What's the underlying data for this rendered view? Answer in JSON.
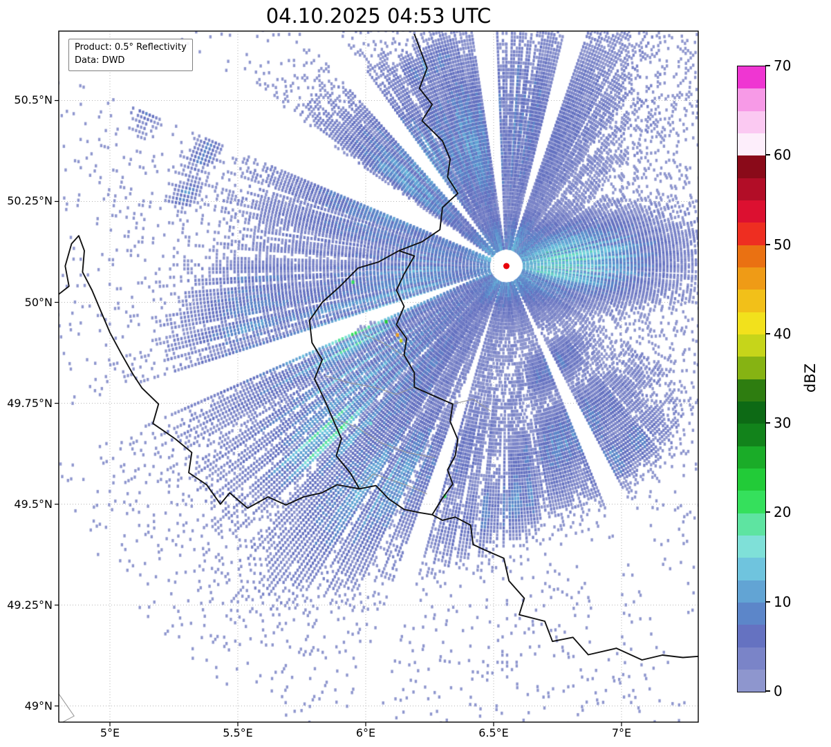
{
  "info_box": {
    "line1": "Product: 0.5° Reflectivity",
    "line2": "Data: DWD"
  },
  "chart_data": {
    "type": "heatmap",
    "title": "04.10.2025 04:53 UTC",
    "xlabel": "",
    "ylabel": "",
    "x_ticks": [
      {
        "value": 5.0,
        "label": "5°E"
      },
      {
        "value": 5.5,
        "label": "5.5°E"
      },
      {
        "value": 6.0,
        "label": "6°E"
      },
      {
        "value": 6.5,
        "label": "6.5°E"
      },
      {
        "value": 7.0,
        "label": "7°E"
      }
    ],
    "y_ticks": [
      {
        "value": 49.0,
        "label": "49°N"
      },
      {
        "value": 49.25,
        "label": "49.25°N"
      },
      {
        "value": 49.5,
        "label": "49.5°N"
      },
      {
        "value": 49.75,
        "label": "49.75°N"
      },
      {
        "value": 50.0,
        "label": "50°N"
      },
      {
        "value": 50.25,
        "label": "50.25°N"
      },
      {
        "value": 50.5,
        "label": "50.5°N"
      }
    ],
    "extent": {
      "lon_min": 4.8,
      "lon_max": 7.3,
      "lat_min": 48.96,
      "lat_max": 50.672
    },
    "grid": {
      "visible": true,
      "style": "dotted",
      "color": "#b3b3b3"
    },
    "colorbar": {
      "label": "dBZ",
      "min": 0,
      "max": 70,
      "step": 2.5,
      "tick_values": [
        0,
        10,
        20,
        30,
        40,
        50,
        60,
        70
      ],
      "colors_bottom_to_top": [
        "#8e96ce",
        "#7a84c8",
        "#6572c1",
        "#5c86c9",
        "#62a4d4",
        "#6fc4de",
        "#7fe0d8",
        "#5ee4a1",
        "#35e05c",
        "#22cb38",
        "#1aac28",
        "#12831b",
        "#0d6a15",
        "#2e7d10",
        "#86b313",
        "#c6d51a",
        "#f2e11c",
        "#f2c019",
        "#ef9b16",
        "#ea7112",
        "#ee2e21",
        "#dc1030",
        "#b20d27",
        "#8a0a19",
        "#fdeefb",
        "#fbc9f2",
        "#f79ae7",
        "#ef36d2"
      ]
    },
    "radar_site": {
      "lon": 6.55,
      "lat": 50.09,
      "marker_color": "#e8000b"
    },
    "blob_format": "[lon, lat, sigma_major_deg, sigma_minor_deg, rotation_deg, peak_dbz]",
    "echo_blobs": [
      [
        6.28,
        50.34,
        0.3,
        0.15,
        30,
        8.5
      ],
      [
        6.78,
        50.1,
        0.17,
        0.07,
        5,
        13
      ],
      [
        6.55,
        50.1,
        0.1,
        0.09,
        0,
        11
      ],
      [
        6.17,
        50.03,
        0.18,
        0.12,
        35,
        9
      ],
      [
        5.92,
        49.86,
        0.25,
        0.16,
        40,
        10
      ],
      [
        5.95,
        49.9,
        0.14,
        0.05,
        40,
        15
      ],
      [
        5.85,
        49.67,
        0.13,
        0.05,
        40,
        14
      ],
      [
        5.55,
        49.97,
        0.13,
        0.09,
        40,
        7.5
      ],
      [
        6.08,
        49.55,
        0.2,
        0.1,
        35,
        8.5
      ],
      [
        6.78,
        49.66,
        0.16,
        0.06,
        40,
        7.5
      ],
      [
        6.55,
        49.5,
        0.16,
        0.05,
        25,
        7
      ],
      [
        6.45,
        50.42,
        0.1,
        0.05,
        30,
        7
      ],
      [
        6.23,
        50.58,
        0.08,
        0.035,
        30,
        7
      ],
      [
        6.55,
        50.56,
        0.05,
        0.03,
        30,
        6.5
      ],
      [
        5.12,
        50.58,
        0.05,
        0.022,
        55,
        8
      ],
      [
        5.18,
        50.5,
        0.045,
        0.02,
        55,
        7.5
      ],
      [
        5.36,
        50.36,
        0.045,
        0.018,
        50,
        7.5
      ],
      [
        5.3,
        50.27,
        0.035,
        0.015,
        50,
        7
      ],
      [
        5.48,
        50.01,
        0.03,
        0.015,
        45,
        6.5
      ],
      [
        7.0,
        49.63,
        0.1,
        0.04,
        40,
        7
      ],
      [
        6.73,
        49.84,
        0.07,
        0.035,
        40,
        7
      ]
    ],
    "speckle_format": "[lon, lat, dbz]",
    "speckles": [
      [
        5.95,
        50.05,
        22
      ],
      [
        6.08,
        49.952,
        24
      ],
      [
        6.124,
        49.919,
        46
      ],
      [
        6.138,
        49.905,
        38
      ],
      [
        6.31,
        49.52,
        22
      ],
      [
        6.02,
        49.7,
        17
      ]
    ],
    "blocked_sectors_deg": [
      [
        293,
        304
      ],
      [
        318,
        324
      ],
      [
        352,
        357
      ],
      [
        14,
        19
      ],
      [
        152,
        157
      ],
      [
        196,
        200
      ],
      [
        247,
        252
      ]
    ],
    "borders": {
      "note": "approximate country and admin boundary polylines in [lon,lat]",
      "country": [
        [
          [
            6.19,
            50.665
          ],
          [
            6.24,
            50.58
          ],
          [
            6.21,
            50.53
          ],
          [
            6.26,
            50.49
          ],
          [
            6.22,
            50.45
          ],
          [
            6.3,
            50.4
          ],
          [
            6.33,
            50.355
          ],
          [
            6.32,
            50.31
          ],
          [
            6.36,
            50.27
          ],
          [
            6.3,
            50.235
          ],
          [
            6.29,
            50.18
          ],
          [
            6.22,
            50.15
          ],
          [
            6.13,
            50.128
          ]
        ],
        [
          [
            6.13,
            50.128
          ],
          [
            6.19,
            50.115
          ],
          [
            6.15,
            50.07
          ],
          [
            6.12,
            50.03
          ],
          [
            6.15,
            49.99
          ],
          [
            6.12,
            49.945
          ],
          [
            6.16,
            49.91
          ],
          [
            6.15,
            49.87
          ],
          [
            6.19,
            49.826
          ],
          [
            6.19,
            49.79
          ],
          [
            6.26,
            49.77
          ],
          [
            6.34,
            49.748
          ],
          [
            6.33,
            49.705
          ],
          [
            6.36,
            49.66
          ],
          [
            6.35,
            49.62
          ],
          [
            6.32,
            49.585
          ],
          [
            6.34,
            49.55
          ],
          [
            6.3,
            49.515
          ],
          [
            6.26,
            49.474
          ]
        ],
        [
          [
            6.26,
            49.474
          ],
          [
            6.3,
            49.46
          ],
          [
            6.35,
            49.468
          ],
          [
            6.41,
            49.448
          ],
          [
            6.42,
            49.4
          ],
          [
            6.46,
            49.388
          ],
          [
            6.54,
            49.366
          ],
          [
            6.56,
            49.31
          ],
          [
            6.62,
            49.267
          ],
          [
            6.6,
            49.226
          ],
          [
            6.7,
            49.21
          ],
          [
            6.73,
            49.16
          ],
          [
            6.81,
            49.17
          ],
          [
            6.87,
            49.127
          ],
          [
            6.98,
            49.143
          ],
          [
            7.08,
            49.114
          ],
          [
            7.16,
            49.126
          ],
          [
            7.24,
            49.12
          ],
          [
            7.3,
            49.123
          ]
        ],
        [
          [
            6.13,
            50.128
          ],
          [
            6.05,
            50.1
          ],
          [
            5.97,
            50.085
          ],
          [
            5.9,
            50.04
          ],
          [
            5.83,
            50.0
          ],
          [
            5.78,
            49.955
          ],
          [
            5.79,
            49.9
          ],
          [
            5.83,
            49.858
          ],
          [
            5.8,
            49.81
          ],
          [
            5.84,
            49.757
          ],
          [
            5.87,
            49.713
          ],
          [
            5.905,
            49.662
          ],
          [
            5.885,
            49.62
          ],
          [
            5.94,
            49.577
          ],
          [
            5.975,
            49.538
          ],
          [
            6.04,
            49.546
          ],
          [
            6.09,
            49.513
          ],
          [
            6.15,
            49.487
          ],
          [
            6.21,
            49.479
          ],
          [
            6.26,
            49.474
          ]
        ],
        [
          [
            4.8,
            50.02
          ],
          [
            4.84,
            50.04
          ],
          [
            4.825,
            50.09
          ],
          [
            4.85,
            50.145
          ],
          [
            4.878,
            50.165
          ],
          [
            4.9,
            50.128
          ],
          [
            4.893,
            50.075
          ],
          [
            4.93,
            50.03
          ],
          [
            4.962,
            49.982
          ],
          [
            5.0,
            49.925
          ],
          [
            5.045,
            49.872
          ],
          [
            5.09,
            49.822
          ],
          [
            5.125,
            49.788
          ],
          [
            5.19,
            49.748
          ],
          [
            5.168,
            49.7
          ],
          [
            5.255,
            49.662
          ],
          [
            5.32,
            49.628
          ],
          [
            5.308,
            49.578
          ],
          [
            5.378,
            49.548
          ],
          [
            5.432,
            49.5
          ],
          [
            5.468,
            49.528
          ],
          [
            5.538,
            49.49
          ],
          [
            5.618,
            49.518
          ],
          [
            5.688,
            49.498
          ],
          [
            5.757,
            49.518
          ],
          [
            5.828,
            49.528
          ],
          [
            5.888,
            49.548
          ],
          [
            5.975,
            49.538
          ]
        ]
      ],
      "admin": [
        [
          [
            5.99,
            49.92
          ],
          [
            6.05,
            49.905
          ],
          [
            6.1,
            49.888
          ],
          [
            6.16,
            49.862
          ]
        ],
        [
          [
            5.84,
            49.818
          ],
          [
            5.94,
            49.8
          ],
          [
            6.03,
            49.79
          ],
          [
            6.12,
            49.772
          ],
          [
            6.19,
            49.79
          ]
        ],
        [
          [
            5.87,
            49.713
          ],
          [
            5.96,
            49.692
          ],
          [
            6.06,
            49.652
          ],
          [
            6.16,
            49.628
          ],
          [
            6.27,
            49.615
          ]
        ],
        [
          [
            5.975,
            49.538
          ],
          [
            6.03,
            49.575
          ],
          [
            6.1,
            49.56
          ],
          [
            6.17,
            49.545
          ],
          [
            6.24,
            49.525
          ]
        ],
        [
          [
            6.34,
            49.748
          ],
          [
            6.42,
            49.76
          ],
          [
            6.49,
            49.73
          ]
        ],
        [
          [
            4.8,
            49.03
          ],
          [
            4.86,
            48.975
          ],
          [
            4.8,
            48.955
          ]
        ]
      ]
    }
  }
}
